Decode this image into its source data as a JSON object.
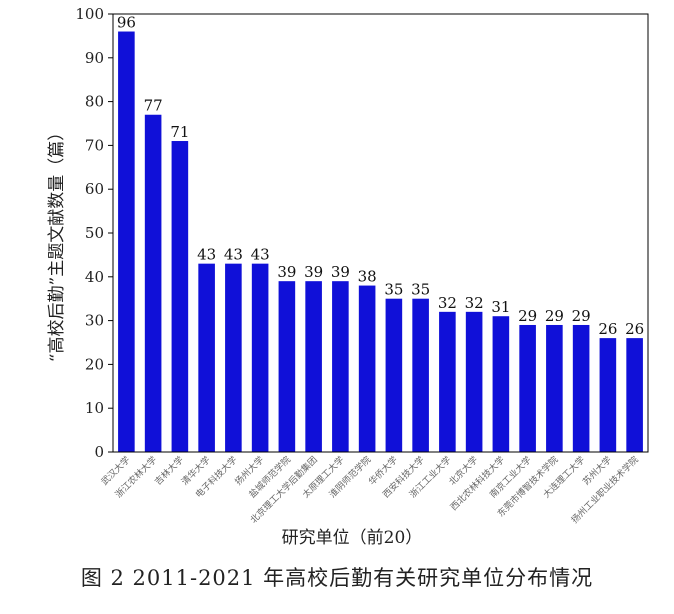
{
  "caption": "图 2   2011-2021 年高校后勤有关研究单位分布情况",
  "colors": {
    "bar": "#1010d8",
    "axis": "#000000"
  },
  "chart_data": {
    "type": "bar",
    "ylabel": "“高校后勤”主题文献数量（篇）",
    "xlabel": "研究单位（前20）",
    "ylim": [
      0,
      100
    ],
    "yticks": [
      0,
      10,
      20,
      30,
      40,
      50,
      60,
      70,
      80,
      90,
      100
    ],
    "grid": false,
    "categories": [
      "武汉大学",
      "浙江农林大学",
      "吉林大学",
      "清华大学",
      "电子科技大学",
      "扬州大学",
      "盐城师范学院",
      "北京理工大学后勤集团",
      "太原理工大学",
      "淮阴师范学院",
      "华侨大学",
      "西安科技大学",
      "浙江工业大学",
      "北京大学",
      "西北农林科技大学",
      "南京工业大学",
      "东莞市博智技术学院",
      "大连理工大学",
      "苏州大学",
      "扬州工业职业技术学院"
    ],
    "values": [
      96,
      77,
      71,
      43,
      43,
      43,
      39,
      39,
      39,
      38,
      35,
      35,
      32,
      32,
      31,
      29,
      29,
      29,
      26,
      26
    ]
  }
}
